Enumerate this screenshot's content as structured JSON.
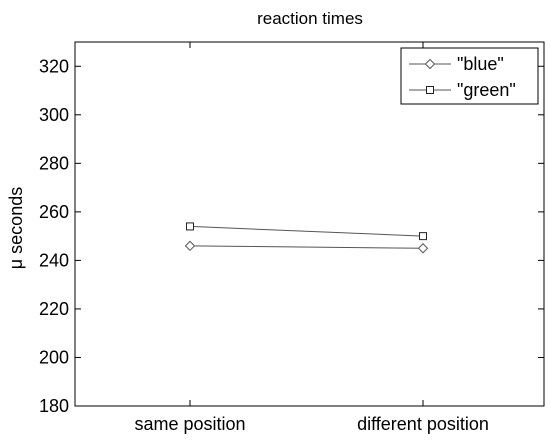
{
  "chart_data": {
    "type": "line",
    "title": "reaction times",
    "xlabel": "",
    "ylabel": "μ seconds",
    "categories": [
      "same position",
      "different position"
    ],
    "ylim": [
      180,
      330
    ],
    "yticks": [
      180,
      200,
      220,
      240,
      260,
      280,
      300,
      320
    ],
    "grid": false,
    "legend_position": "top-right",
    "series": [
      {
        "name": "\"blue\"",
        "marker": "diamond",
        "values": [
          246,
          245
        ]
      },
      {
        "name": "\"green\"",
        "marker": "square",
        "values": [
          254,
          250
        ]
      }
    ],
    "colors": {
      "line": "#555555",
      "axis": "#000000",
      "background": "#ffffff"
    }
  }
}
